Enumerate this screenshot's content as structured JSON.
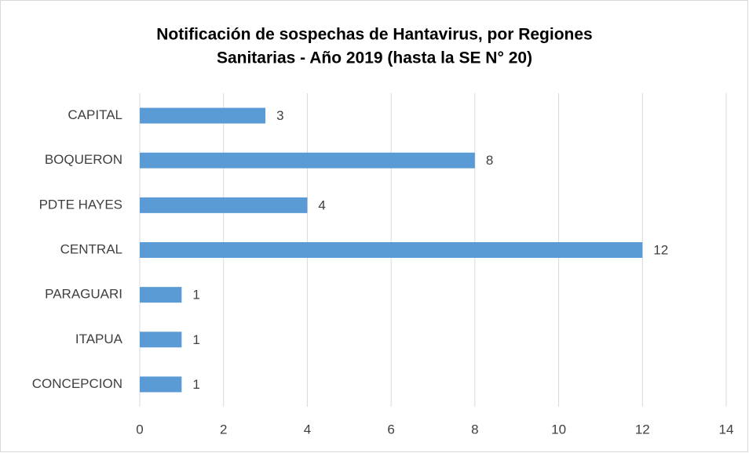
{
  "chart_data": {
    "type": "barh",
    "title": [
      "Notificación de sospechas de Hantavirus, por Regiones",
      "Sanitarias - Año 2019 (hasta la SE N° 20)"
    ],
    "categories": [
      "CAPITAL",
      "BOQUERON",
      "PDTE HAYES",
      "CENTRAL",
      "PARAGUARI",
      "ITAPUA",
      "CONCEPCION"
    ],
    "values": [
      3,
      8,
      4,
      12,
      1,
      1,
      1
    ],
    "color": "#5b9bd5",
    "xlim": [
      0,
      14
    ],
    "xticks": [
      0,
      2,
      4,
      6,
      8,
      10,
      12,
      14
    ],
    "grid": true
  }
}
